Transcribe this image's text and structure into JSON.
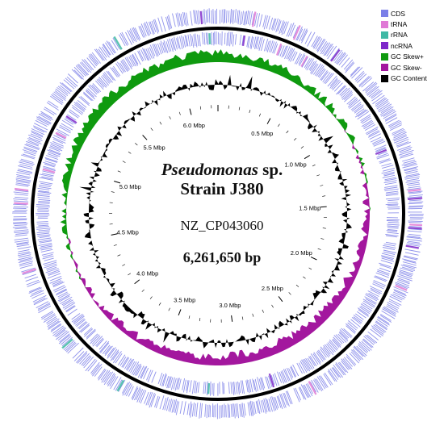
{
  "center": {
    "organism": "Pseudomonas",
    "organism_suffix": " sp.",
    "strain": "Strain J380",
    "accession": "NZ_CP043060",
    "genome_size": "6,261,650 bp"
  },
  "legend": [
    {
      "label": "CDS",
      "color": "#7b7fe8"
    },
    {
      "label": "tRNA",
      "color": "#e07ad6"
    },
    {
      "label": "rRNA",
      "color": "#3fb9a5"
    },
    {
      "label": "ncRNA",
      "color": "#7d27c9"
    },
    {
      "label": "GC Skew+",
      "color": "#0f9a0f"
    },
    {
      "label": "GC Skew-",
      "color": "#a3179e"
    },
    {
      "label": "GC Content",
      "color": "#000000"
    }
  ],
  "chart_data": {
    "type": "circular-genome-map",
    "genome_length_bp": 6261650,
    "tick_labels": [
      "0.5 Mbp",
      "1.0 Mbp",
      "1.5 Mbp",
      "2.0 Mbp",
      "2.5 Mbp",
      "3.0 Mbp",
      "3.5 Mbp",
      "4.0 Mbp",
      "4.5 Mbp",
      "5.0 Mbp",
      "5.5 Mbp",
      "6.0 Mbp"
    ],
    "tick_positions_mbp": [
      0.5,
      1.0,
      1.5,
      2.0,
      2.5,
      3.0,
      3.5,
      4.0,
      4.5,
      5.0,
      5.5,
      6.0
    ],
    "tracks": [
      "CDS (forward)",
      "CDS (reverse)",
      "GC Skew",
      "GC Content"
    ]
  }
}
